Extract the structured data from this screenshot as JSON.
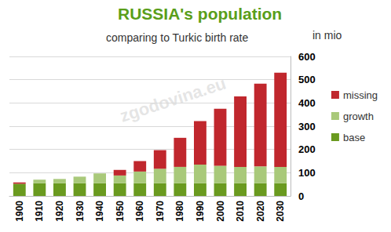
{
  "chart_data": {
    "type": "bar",
    "title": "RUSSIA's population",
    "subtitle": "comparing to Turkic birth rate",
    "y_label": "in mio",
    "annotations": [
      "zgodovina.eu"
    ],
    "categories": [
      "1900",
      "1910",
      "1920",
      "1930",
      "1940",
      "1950",
      "1960",
      "1970",
      "1980",
      "1990",
      "2000",
      "2010",
      "2020",
      "2030"
    ],
    "series": [
      {
        "name": "base",
        "color": "#6a9a1f",
        "values": [
          52,
          55,
          55,
          55,
          55,
          55,
          55,
          55,
          55,
          55,
          55,
          55,
          55,
          55
        ]
      },
      {
        "name": "growth",
        "color": "#a9c97a",
        "values": [
          0,
          15,
          18,
          28,
          42,
          33,
          50,
          62,
          70,
          80,
          75,
          70,
          72,
          70
        ]
      },
      {
        "name": "missing",
        "color": "#c0272d",
        "values": [
          6,
          0,
          0,
          0,
          0,
          24,
          45,
          80,
          125,
          187,
          245,
          303,
          356,
          405
        ]
      }
    ],
    "stacked": true,
    "ylim": [
      0,
      600
    ],
    "yticks": [
      0,
      100,
      200,
      300,
      400,
      500,
      600
    ],
    "grid": true,
    "legend": "right"
  }
}
